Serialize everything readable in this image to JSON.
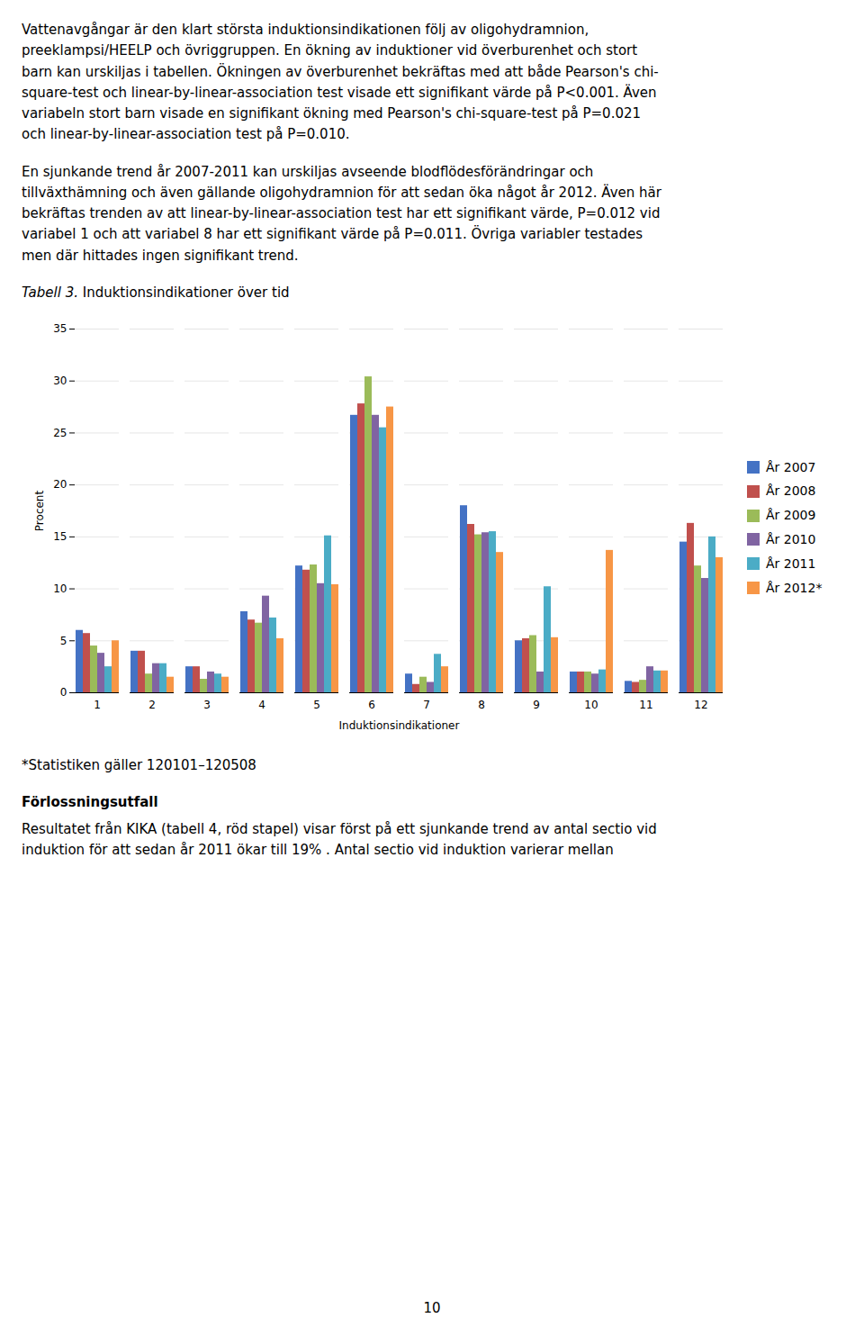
{
  "chart_data": {
    "type": "bar",
    "title": "Tabell 3. Induktionsindikationer över tid",
    "categories": [
      1,
      2,
      3,
      4,
      5,
      6,
      7,
      8,
      9,
      10,
      11,
      12
    ],
    "series": [
      {
        "name": "År 2007",
        "color": "#4472C4",
        "values": [
          6.0,
          4.0,
          2.5,
          7.8,
          12.2,
          26.7,
          1.8,
          18.0,
          5.0,
          2.0,
          1.1,
          14.5
        ]
      },
      {
        "name": "År 2008",
        "color": "#C0504D",
        "values": [
          5.7,
          4.0,
          2.5,
          7.0,
          11.8,
          27.8,
          0.8,
          16.2,
          5.2,
          2.0,
          1.0,
          16.3
        ]
      },
      {
        "name": "År 2009",
        "color": "#9BBB59",
        "values": [
          4.5,
          1.8,
          1.3,
          6.7,
          12.3,
          30.4,
          1.5,
          15.2,
          5.5,
          2.0,
          1.2,
          12.2
        ]
      },
      {
        "name": "År 2010",
        "color": "#8064A2",
        "values": [
          3.8,
          2.8,
          2.0,
          9.3,
          10.5,
          26.7,
          1.0,
          15.4,
          2.0,
          1.8,
          2.5,
          11.0
        ]
      },
      {
        "name": "År 2011",
        "color": "#4BACC6",
        "values": [
          2.5,
          2.8,
          1.8,
          7.2,
          15.1,
          25.5,
          3.7,
          15.5,
          10.2,
          2.2,
          2.1,
          15.0
        ]
      },
      {
        "name": "År 2012*",
        "color": "#F79646",
        "values": [
          5.0,
          1.5,
          1.5,
          5.2,
          10.4,
          27.5,
          2.5,
          13.5,
          5.3,
          13.7,
          2.1,
          13.0
        ]
      }
    ],
    "xlabel": "Induktionsindikationer",
    "ylabel": "Procent",
    "ylim": [
      0,
      35
    ],
    "yticks": [
      0,
      5,
      10,
      15,
      20,
      25,
      30,
      35
    ],
    "grid": true,
    "legend": "right",
    "annotations": [
      [
        "Vattenavgångar är den klart största induktionsindikationen följ av oligohydramnion,",
        "preeklampsi/HEELP och övriggruppen. En ökning av induktioner vid överburenhet och stort",
        "barn kan urskiljas i tabellen. Ökningen av överburenhet bekräftas med att både Pearson's chi-",
        "square-test och linear-by-linear-association test visade ett signifikant värde på P<0.001. Även",
        "variabeln stort barn visade en signifikant ökning med Pearson's chi-square-test på P=0.021",
        "och linear-by-linear-association test på P=0.010."
      ],
      [
        "En sjunkande trend år 2007-2011 kan urskiljas avseende blodflödesförändringar och",
        "tillväxthämning och även gällande oligohydramnion för att sedan öka något år 2012. Även här",
        "bekräftas trenden av att linear-by-linear-association test har ett signifikant värde, P=0.012 vid",
        "variabel 1 och att variabel 8 har ett signifikant värde på P=0.011. Övriga variabler testades",
        "men där hittades ingen signifikant trend."
      ],
      [
        "*Statistiken gäller 120101–120508"
      ],
      [
        "Förlossningsutfall"
      ],
      [
        "Resultatet från KIKA (tabell 4, röd stapel) visar först på ett sjunkande trend av antal sectio vid",
        "induktion för att sedan år 2011 ökar till 19% . Antal sectio vid induktion varierar mellan"
      ],
      [
        "10"
      ]
    ]
  }
}
